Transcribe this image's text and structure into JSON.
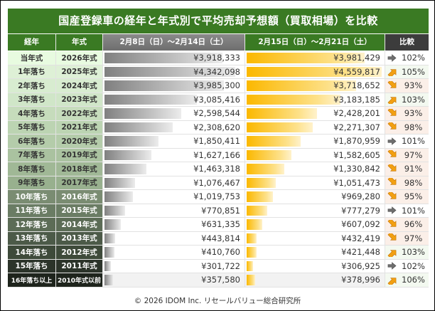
{
  "title": "国産登録車の経年と年式別で平均売却予想額（買取相場）を比較",
  "headers": {
    "age": "経年",
    "year": "年式",
    "week1": "2月8日（日）～2月14日（土）",
    "week2": "2月15日（日）～2月21日（土）",
    "compare": "比較"
  },
  "colors": {
    "title": "#3a7a23",
    "header_green": "#3a7a23",
    "header_grey": "#7a7a7a",
    "header_dark": "#3c3c3c",
    "up_bg": "#f3f9f0",
    "down_bg": "#fbefe8",
    "arrow_orange": "#f2a012",
    "arrow_grey": "#6e6e6e"
  },
  "chart_data": {
    "type": "table",
    "title": "国産登録車の経年と年式別で平均売却予想額（買取相場）を比較",
    "series_names": [
      "2月8日（日）～2月14日（土）",
      "2月15日（日）～2月21日（土）"
    ],
    "rows": [
      {
        "age": "当年式",
        "year": "2026年式",
        "w1": "¥3,918,333",
        "w2": "¥3,981,429",
        "v1": 3918333,
        "v2": 3981429,
        "trend": "flat",
        "pct": "102%"
      },
      {
        "age": "1年落ち",
        "year": "2025年式",
        "w1": "¥4,342,098",
        "w2": "¥4,559,817",
        "v1": 4342098,
        "v2": 4559817,
        "trend": "up",
        "pct": "105%"
      },
      {
        "age": "2年落ち",
        "year": "2024年式",
        "w1": "¥3,985,300",
        "w2": "¥3,718,652",
        "v1": 3985300,
        "v2": 3718652,
        "trend": "down",
        "pct": "93%"
      },
      {
        "age": "3年落ち",
        "year": "2023年式",
        "w1": "¥3,085,416",
        "w2": "¥3,183,185",
        "v1": 3085416,
        "v2": 3183185,
        "trend": "up",
        "pct": "103%"
      },
      {
        "age": "4年落ち",
        "year": "2022年式",
        "w1": "¥2,598,544",
        "w2": "¥2,428,201",
        "v1": 2598544,
        "v2": 2428201,
        "trend": "down",
        "pct": "93%"
      },
      {
        "age": "5年落ち",
        "year": "2021年式",
        "w1": "¥2,308,620",
        "w2": "¥2,271,307",
        "v1": 2308620,
        "v2": 2271307,
        "trend": "down",
        "pct": "98%"
      },
      {
        "age": "6年落ち",
        "year": "2020年式",
        "w1": "¥1,850,411",
        "w2": "¥1,870,959",
        "v1": 1850411,
        "v2": 1870959,
        "trend": "flat",
        "pct": "101%"
      },
      {
        "age": "7年落ち",
        "year": "2019年式",
        "w1": "¥1,627,166",
        "w2": "¥1,582,605",
        "v1": 1627166,
        "v2": 1582605,
        "trend": "down",
        "pct": "97%"
      },
      {
        "age": "8年落ち",
        "year": "2018年式",
        "w1": "¥1,463,318",
        "w2": "¥1,330,842",
        "v1": 1463318,
        "v2": 1330842,
        "trend": "down",
        "pct": "91%"
      },
      {
        "age": "9年落ち",
        "year": "2017年式",
        "w1": "¥1,076,467",
        "w2": "¥1,051,473",
        "v1": 1076467,
        "v2": 1051473,
        "trend": "down",
        "pct": "98%"
      },
      {
        "age": "10年落ち",
        "year": "2016年式",
        "w1": "¥1,019,753",
        "w2": "¥969,280",
        "v1": 1019753,
        "v2": 969280,
        "trend": "down",
        "pct": "95%"
      },
      {
        "age": "11年落ち",
        "year": "2015年式",
        "w1": "¥770,851",
        "w2": "¥777,279",
        "v1": 770851,
        "v2": 777279,
        "trend": "flat",
        "pct": "101%"
      },
      {
        "age": "12年落ち",
        "year": "2014年式",
        "w1": "¥631,335",
        "w2": "¥607,092",
        "v1": 631335,
        "v2": 607092,
        "trend": "down",
        "pct": "96%"
      },
      {
        "age": "13年落ち",
        "year": "2013年式",
        "w1": "¥443,814",
        "w2": "¥432,419",
        "v1": 443814,
        "v2": 432419,
        "trend": "down",
        "pct": "97%"
      },
      {
        "age": "14年落ち",
        "year": "2012年式",
        "w1": "¥410,760",
        "w2": "¥421,448",
        "v1": 410760,
        "v2": 421448,
        "trend": "up",
        "pct": "103%"
      },
      {
        "age": "15年落ち",
        "year": "2011年式",
        "w1": "¥301,722",
        "w2": "¥306,925",
        "v1": 301722,
        "v2": 306925,
        "trend": "flat",
        "pct": "102%"
      },
      {
        "age": "16年落ち以上",
        "year": "2010年式以前",
        "w1": "¥357,580",
        "w2": "¥378,996",
        "v1": 357580,
        "v2": 378996,
        "trend": "up",
        "pct": "106%"
      }
    ],
    "max_value": 4600000
  },
  "footer": "© 2026 IDOM Inc. リセールバリュー総合研究所"
}
